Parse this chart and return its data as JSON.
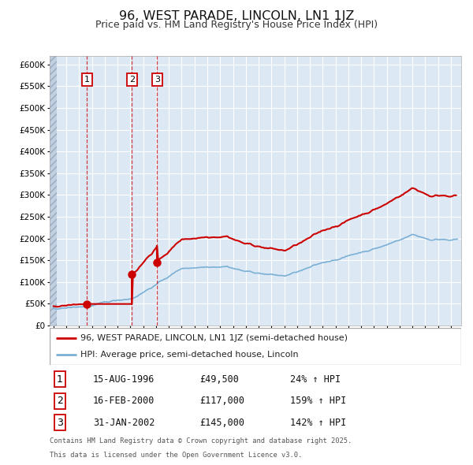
{
  "title": "96, WEST PARADE, LINCOLN, LN1 1JZ",
  "subtitle": "Price paid vs. HM Land Registry's House Price Index (HPI)",
  "legend_line1": "96, WEST PARADE, LINCOLN, LN1 1JZ (semi-detached house)",
  "legend_line2": "HPI: Average price, semi-detached house, Lincoln",
  "footnote_line1": "Contains HM Land Registry data © Crown copyright and database right 2025.",
  "footnote_line2": "This data is licensed under the Open Government Licence v3.0.",
  "transactions": [
    {
      "num": 1,
      "date": "15-AUG-1996",
      "price": 49500,
      "hpi_pct": "24% ↑ HPI",
      "year_f": 1996.62
    },
    {
      "num": 2,
      "date": "16-FEB-2000",
      "price": 117000,
      "hpi_pct": "159% ↑ HPI",
      "year_f": 2000.12
    },
    {
      "num": 3,
      "date": "31-JAN-2002",
      "price": 145000,
      "hpi_pct": "142% ↑ HPI",
      "year_f": 2002.08
    }
  ],
  "ylim_max": 620000,
  "xlim_start": 1993.7,
  "xlim_end": 2025.8,
  "bg_color": "#dce9f5",
  "red_color": "#cc0000",
  "blue_color": "#7bafd4",
  "grid_color": "#ffffff",
  "hatch_facecolor": "#c0d0e2",
  "hatch_edgecolor": "#9aaabb",
  "box_edge_color": "#cc0000"
}
